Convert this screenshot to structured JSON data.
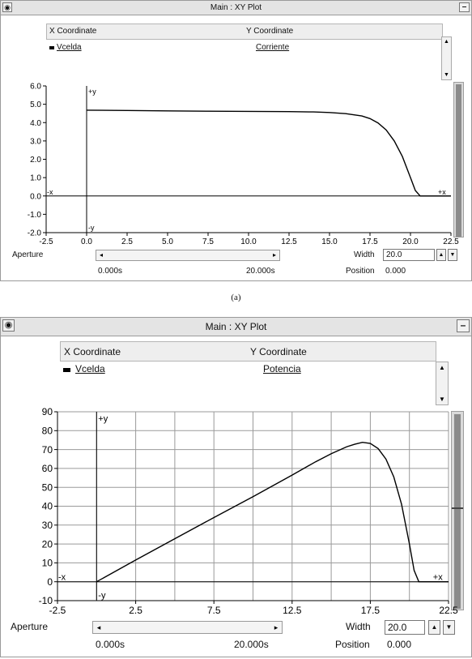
{
  "windows": [
    {
      "title": "Main : XY Plot",
      "system_icon": "eye-icon",
      "minimize_icon": "minus-icon",
      "header": {
        "x_label": "X Coordinate",
        "y_label": "Y Coordinate",
        "x_signal": "Vcelda",
        "y_signal": "Corriente"
      },
      "axis_markers": {
        "plus_y": "+y",
        "minus_y": "-y",
        "minus_x": "-x",
        "plus_x": "+x"
      },
      "controls": {
        "aperture_label": "Aperture",
        "time_start": "0.000s",
        "time_end": "20.000s",
        "width_label": "Width",
        "width_value": "20.0",
        "position_label": "Position",
        "position_value": "0.000"
      }
    },
    {
      "title": "Main : XY Plot",
      "system_icon": "eye-icon",
      "minimize_icon": "minus-icon",
      "header": {
        "x_label": "X Coordinate",
        "y_label": "Y Coordinate",
        "x_signal": "Vcelda",
        "y_signal": "Potencia"
      },
      "axis_markers": {
        "plus_y": "+y",
        "minus_y": "-y",
        "minus_x": "-x",
        "plus_x": "+x"
      },
      "controls": {
        "aperture_label": "Aperture",
        "time_start": "0.000s",
        "time_end": "20.000s",
        "width_label": "Width",
        "width_value": "20.0",
        "position_label": "Position",
        "position_value": "0.000"
      }
    }
  ],
  "caption": "(a)",
  "chart_data": [
    {
      "type": "line",
      "xlim": [
        -2.5,
        22.5
      ],
      "ylim": [
        -2.0,
        6.0
      ],
      "xticks": [
        "-2.5",
        "0.0",
        "2.5",
        "5.0",
        "7.5",
        "10.0",
        "12.5",
        "15.0",
        "17.5",
        "20.0",
        "22.5"
      ],
      "yticks": [
        "6.0",
        "5.0",
        "4.0",
        "3.0",
        "2.0",
        "1.0",
        "0.0",
        "-1.0",
        "-2.0"
      ],
      "grid": false,
      "series": [
        {
          "name": "Corriente",
          "color": "#000000",
          "x": [
            0.0,
            2.5,
            5.0,
            7.5,
            10.0,
            12.5,
            14.0,
            15.0,
            16.0,
            17.0,
            17.5,
            18.0,
            18.5,
            19.0,
            19.5,
            20.0,
            20.3,
            20.6,
            22.5
          ],
          "y": [
            4.68,
            4.66,
            4.64,
            4.62,
            4.61,
            4.6,
            4.58,
            4.55,
            4.49,
            4.36,
            4.22,
            3.98,
            3.6,
            3.0,
            2.15,
            1.0,
            0.3,
            0.0,
            0.0
          ]
        }
      ]
    },
    {
      "type": "line",
      "xlim": [
        -2.5,
        22.5
      ],
      "ylim": [
        -10,
        90
      ],
      "xticks": [
        "-2.5",
        "2.5",
        "7.5",
        "12.5",
        "17.5",
        "22.5"
      ],
      "yticks": [
        "90",
        "80",
        "70",
        "60",
        "50",
        "40",
        "30",
        "20",
        "10",
        "0",
        "-10"
      ],
      "grid": true,
      "series": [
        {
          "name": "Potencia",
          "color": "#000000",
          "x": [
            0.0,
            2.5,
            5.0,
            7.5,
            10.0,
            12.5,
            14.0,
            15.0,
            16.0,
            16.5,
            17.0,
            17.5,
            18.0,
            18.5,
            19.0,
            19.5,
            20.0,
            20.3,
            20.6,
            22.5
          ],
          "y": [
            0,
            11.5,
            22.8,
            34.0,
            45.0,
            56.5,
            63.5,
            67.8,
            71.5,
            72.8,
            73.8,
            73.2,
            70.5,
            65.0,
            55.5,
            41.0,
            20.0,
            6.0,
            0,
            0
          ]
        }
      ]
    }
  ]
}
